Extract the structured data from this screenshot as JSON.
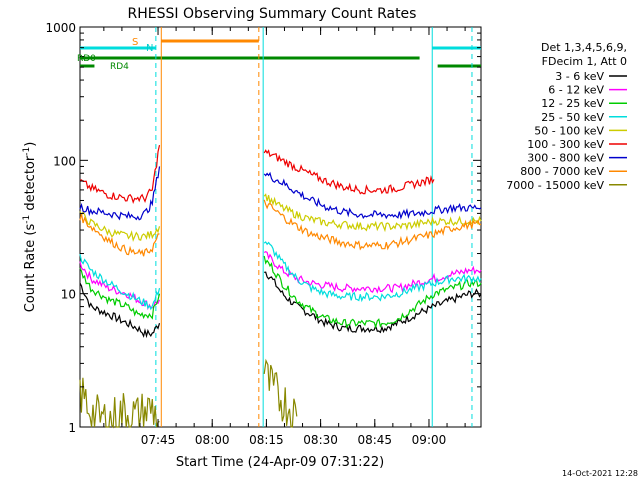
{
  "chart_data": {
    "type": "line",
    "title": "RHESSI Observing Summary Count Rates",
    "xlabel": "Start Time (24-Apr-09 07:31:22)",
    "ylabel_main": "Count Rate (s",
    "ylabel_sup": "-1",
    "ylabel_tail": " detector",
    "ylabel_end": ")",
    "yscale": "log",
    "ylim": [
      1,
      1000
    ],
    "xlim_min": [
      -8,
      103
    ],
    "x_unit": "minutes after 07:31:22",
    "y_ticks": [
      "1",
      "10",
      "100",
      "1000"
    ],
    "x_ticks": [
      {
        "label": "07:45",
        "minute": 13.6
      },
      {
        "label": "08:00",
        "minute": 28.6
      },
      {
        "label": "08:15",
        "minute": 43.6
      },
      {
        "label": "08:30",
        "minute": 58.6
      },
      {
        "label": "08:45",
        "minute": 73.6
      },
      {
        "label": "09:00",
        "minute": 88.6
      }
    ],
    "legend": {
      "header": [
        "Det 1,3,4,5,6,9,",
        "FDecim 1, Att 0"
      ],
      "placement": "right"
    },
    "series": [
      {
        "name": "3 - 6 keV",
        "color": "#000000",
        "segments": [
          {
            "x": [
              -8,
              -5,
              0,
              5,
              8,
              10,
              12,
              14
            ],
            "y": [
              12,
              8,
              7,
              6,
              5.5,
              5,
              5,
              6
            ]
          },
          {
            "x": [
              43,
              45,
              48,
              52,
              56,
              60,
              65,
              70,
              76,
              80,
              85,
              90,
              95,
              100,
              103
            ],
            "y": [
              15,
              13,
              10,
              8,
              7,
              6,
              5.5,
              5.5,
              5.5,
              6,
              7,
              8,
              9,
              10,
              10
            ]
          }
        ]
      },
      {
        "name": "6 - 12 keV",
        "color": "#ff00ff",
        "segments": [
          {
            "x": [
              -8,
              -5,
              0,
              5,
              8,
              10,
              12,
              14
            ],
            "y": [
              17,
              13,
              11,
              10,
              9,
              8.5,
              8,
              9
            ]
          },
          {
            "x": [
              43,
              45,
              48,
              52,
              56,
              60,
              65,
              70,
              76,
              80,
              85,
              90,
              95,
              100,
              103
            ],
            "y": [
              20,
              18,
              15,
              13,
              12,
              11.5,
              11,
              11,
              11,
              11,
              12,
              13,
              14,
              15,
              15
            ]
          }
        ]
      },
      {
        "name": "12 - 25 keV",
        "color": "#00cc00",
        "segments": [
          {
            "x": [
              -8,
              -5,
              0,
              5,
              8,
              10,
              12,
              14
            ],
            "y": [
              15,
              11,
              9,
              8,
              7,
              7,
              7,
              10
            ]
          },
          {
            "x": [
              43,
              45,
              48,
              52,
              56,
              60,
              65,
              70,
              76,
              80,
              85,
              90,
              95,
              100,
              103
            ],
            "y": [
              18,
              16,
              12,
              9,
              7.5,
              6.5,
              6,
              6,
              6,
              6.5,
              8,
              10,
              11,
              12,
              12
            ]
          }
        ]
      },
      {
        "name": "25 - 50 keV",
        "color": "#00dddd",
        "segments": [
          {
            "x": [
              -8,
              -5,
              0,
              5,
              8,
              10,
              12,
              14
            ],
            "y": [
              19,
              15,
              12,
              10,
              9,
              8.5,
              8,
              11
            ]
          },
          {
            "x": [
              43,
              45,
              48,
              52,
              56,
              60,
              65,
              70,
              76,
              80,
              85,
              90,
              95,
              100,
              103
            ],
            "y": [
              25,
              22,
              17,
              13,
              11,
              10,
              9.5,
              9.5,
              9.5,
              10,
              11,
              12,
              13,
              13,
              13
            ]
          }
        ]
      },
      {
        "name": "50 - 100 keV",
        "color": "#cccc00",
        "segments": [
          {
            "x": [
              -8,
              -5,
              0,
              5,
              8,
              10,
              12,
              14
            ],
            "y": [
              40,
              34,
              29,
              27,
              27,
              27,
              28,
              32
            ]
          },
          {
            "x": [
              43,
              45,
              48,
              52,
              56,
              60,
              65,
              70,
              76,
              80,
              85,
              90,
              95,
              100,
              103
            ],
            "y": [
              55,
              50,
              44,
              39,
              36,
              34,
              33,
              32,
              32,
              32,
              33,
              35,
              35,
              35,
              35
            ]
          }
        ]
      },
      {
        "name": "100 - 300 keV",
        "color": "#ee0000",
        "segments": [
          {
            "x": [
              -8,
              -5,
              0,
              5,
              8,
              10,
              12,
              14
            ],
            "y": [
              70,
              62,
              55,
              52,
              52,
              52,
              60,
              130
            ]
          },
          {
            "x": [
              43,
              45,
              48,
              52,
              56,
              60,
              65,
              70,
              76,
              80,
              85,
              90
            ],
            "y": [
              115,
              110,
              100,
              88,
              78,
              70,
              63,
              60,
              60,
              62,
              67,
              72
            ]
          }
        ]
      },
      {
        "name": "300 - 800 keV",
        "color": "#0000cc",
        "segments": [
          {
            "x": [
              -8,
              -5,
              0,
              5,
              8,
              10,
              12,
              14
            ],
            "y": [
              45,
              42,
              40,
              38,
              38,
              40,
              48,
              90
            ]
          },
          {
            "x": [
              43,
              45,
              48,
              52,
              56,
              60,
              65,
              70,
              76,
              80,
              85,
              90,
              95,
              100,
              103
            ],
            "y": [
              80,
              75,
              68,
              58,
              50,
              45,
              41,
              39,
              39,
              39,
              40,
              42,
              44,
              44,
              44
            ]
          }
        ]
      },
      {
        "name": "800 - 7000 keV",
        "color": "#ff8800",
        "segments": [
          {
            "x": [
              -8,
              -5,
              0,
              5,
              8,
              10,
              12,
              14
            ],
            "y": [
              38,
              32,
              25,
              21,
              20,
              20,
              22,
              28
            ]
          },
          {
            "x": [
              43,
              45,
              48,
              52,
              56,
              60,
              65,
              70,
              76,
              80,
              85,
              90,
              95,
              100,
              103
            ],
            "y": [
              48,
              44,
              38,
              32,
              28,
              26,
              24,
              23,
              23,
              24,
              26,
              28,
              31,
              33,
              33
            ]
          }
        ]
      },
      {
        "name": "7000 - 15000 keV",
        "color": "#888800",
        "segments": [
          {
            "x": [
              -8,
              -6,
              -4,
              0,
              4,
              8,
              12,
              14
            ],
            "y": [
              1.8,
              1.5,
              1.2,
              1.1,
              1.3,
              1.2,
              1.4,
              1.1
            ]
          },
          {
            "x": [
              43,
              44,
              46,
              48,
              50,
              52
            ],
            "y": [
              2.5,
              2.2,
              1.8,
              1.6,
              1.4,
              1.2
            ]
          }
        ]
      }
    ],
    "annotations": {
      "saa_label": "S",
      "night_label": "N",
      "rd0_label": "RD0",
      "rd4_label": "RD4",
      "footer_date": "14-Oct-2021 12:28",
      "vertical_markers": [
        {
          "minute": 13.0,
          "color": "#00dddd",
          "style": "dashed"
        },
        {
          "minute": 14.5,
          "color": "#ff8800",
          "style": "solid"
        },
        {
          "minute": 41.5,
          "color": "#ff8800",
          "style": "dashed"
        },
        {
          "minute": 42.7,
          "color": "#00dddd",
          "style": "solid"
        },
        {
          "minute": 89.5,
          "color": "#00dddd",
          "style": "solid"
        },
        {
          "minute": 100.5,
          "color": "#00dddd",
          "style": "dashed"
        }
      ],
      "status_bars": [
        {
          "name": "night",
          "color": "#00dddd",
          "ranges": [
            [
              -8,
              13
            ],
            [
              89.5,
              103
            ]
          ]
        },
        {
          "name": "saa",
          "color": "#ff8800",
          "ranges": [
            [
              14.5,
              41.5
            ]
          ]
        },
        {
          "name": "decim-high",
          "color": "#008800",
          "ranges": [
            [
              -8,
              86
            ]
          ]
        },
        {
          "name": "decim-low",
          "color": "#008800",
          "ranges": [
            [
              -8,
              -4
            ],
            [
              91,
              103
            ]
          ]
        }
      ]
    }
  }
}
